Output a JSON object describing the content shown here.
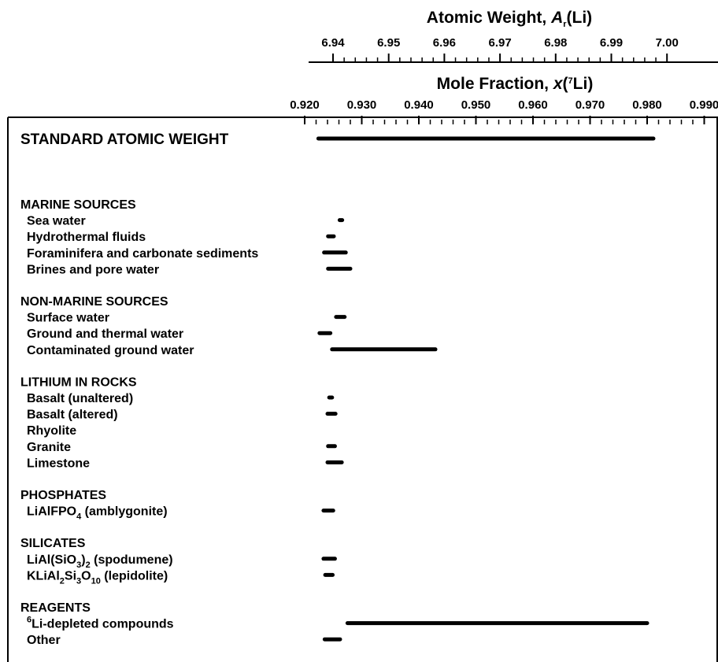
{
  "chart_data": {
    "type": "range-bar",
    "axes": {
      "top": {
        "title": "Atomic Weight, A_r(Li)",
        "title_prefix": "Atomic Weight, ",
        "title_symbol": "A",
        "title_sub": "r",
        "title_suffix": "(Li)",
        "ticks": [
          "6.94",
          "6.95",
          "6.96",
          "6.97",
          "6.98",
          "6.99",
          "7.00"
        ],
        "tick_values": [
          6.94,
          6.95,
          6.96,
          6.97,
          6.98,
          6.99,
          7.0
        ]
      },
      "bottom": {
        "title": "Mole Fraction, x(7Li)",
        "title_prefix": "Mole Fraction, ",
        "title_symbol": "x",
        "title_mid": "(",
        "title_sup": "7",
        "title_suffix": "Li)",
        "ticks": [
          "0.920",
          "0.930",
          "0.940",
          "0.950",
          "0.960",
          "0.970",
          "0.980",
          "0.990"
        ],
        "tick_values": [
          0.92,
          0.93,
          0.94,
          0.95,
          0.96,
          0.97,
          0.98,
          0.99
        ],
        "range": [
          0.92,
          0.99
        ]
      }
    },
    "standard": {
      "label": "STANDARD ATOMIC WEIGHT",
      "x_range": [
        0.9224,
        0.9811
      ]
    },
    "groups": [
      {
        "label": "MARINE SOURCES",
        "rows": [
          {
            "label": "Sea water",
            "x_range": [
              0.9262,
              0.9265
            ]
          },
          {
            "label": "Hydrothermal fluids",
            "x_range": [
              0.9241,
              0.9251
            ]
          },
          {
            "label": "Foraminifera and carbonate sediments",
            "x_range": [
              0.9234,
              0.9272
            ]
          },
          {
            "label": "Brines and pore water",
            "x_range": [
              0.9241,
              0.928
            ]
          }
        ]
      },
      {
        "label": "NON-MARINE SOURCES",
        "rows": [
          {
            "label": "Surface water",
            "x_range": [
              0.9255,
              0.927
            ]
          },
          {
            "label": "Ground and thermal water",
            "x_range": [
              0.9226,
              0.9245
            ]
          },
          {
            "label": "Contaminated ground water",
            "x_range": [
              0.9248,
              0.9429
            ]
          }
        ]
      },
      {
        "label": "LITHIUM IN ROCKS",
        "rows": [
          {
            "label": "Basalt (unaltered)",
            "x_range": [
              0.9243,
              0.9248
            ]
          },
          {
            "label": "Basalt (altered)",
            "x_range": [
              0.924,
              0.9254
            ]
          },
          {
            "label": "Rhyolite",
            "x_range": null
          },
          {
            "label": "Granite",
            "x_range": [
              0.9241,
              0.9253
            ]
          },
          {
            "label": "Limestone",
            "x_range": [
              0.924,
              0.9265
            ]
          }
        ]
      },
      {
        "label": "PHOSPHATES",
        "rows": [
          {
            "label": "LiAlFPO4 (amblygonite)",
            "x_range": [
              0.9233,
              0.925
            ],
            "parts": [
              [
                "LiAlFPO",
                "n"
              ],
              [
                "4",
                "sub"
              ],
              [
                "  (amblygonite)",
                "n"
              ]
            ]
          }
        ]
      },
      {
        "label": "SILICATES",
        "rows": [
          {
            "label": "LiAl(SiO3)2 (spodumene)",
            "x_range": [
              0.9233,
              0.9253
            ],
            "parts": [
              [
                "LiAl(SiO",
                "n"
              ],
              [
                "3",
                "sub"
              ],
              [
                ")",
                "n"
              ],
              [
                "2",
                "sub"
              ],
              [
                "  (spodumene)",
                "n"
              ]
            ]
          },
          {
            "label": "KLiAl2Si3O10 (lepidolite)",
            "x_range": [
              0.9236,
              0.9249
            ],
            "parts": [
              [
                "KLiAl",
                "n"
              ],
              [
                "2",
                "sub"
              ],
              [
                "Si",
                "n"
              ],
              [
                "3",
                "sub"
              ],
              [
                "O",
                "n"
              ],
              [
                "10",
                "sub"
              ],
              [
                "  (lepidolite)",
                "n"
              ]
            ]
          }
        ]
      },
      {
        "label": "REAGENTS",
        "rows": [
          {
            "label": "6Li-depleted compounds",
            "x_range": [
              0.9275,
              0.98
            ],
            "parts": [
              [
                "6",
                "sup"
              ],
              [
                "Li-depleted compounds",
                "n"
              ]
            ]
          },
          {
            "label": "Other",
            "x_range": [
              0.9235,
              0.9262
            ]
          }
        ]
      }
    ]
  }
}
